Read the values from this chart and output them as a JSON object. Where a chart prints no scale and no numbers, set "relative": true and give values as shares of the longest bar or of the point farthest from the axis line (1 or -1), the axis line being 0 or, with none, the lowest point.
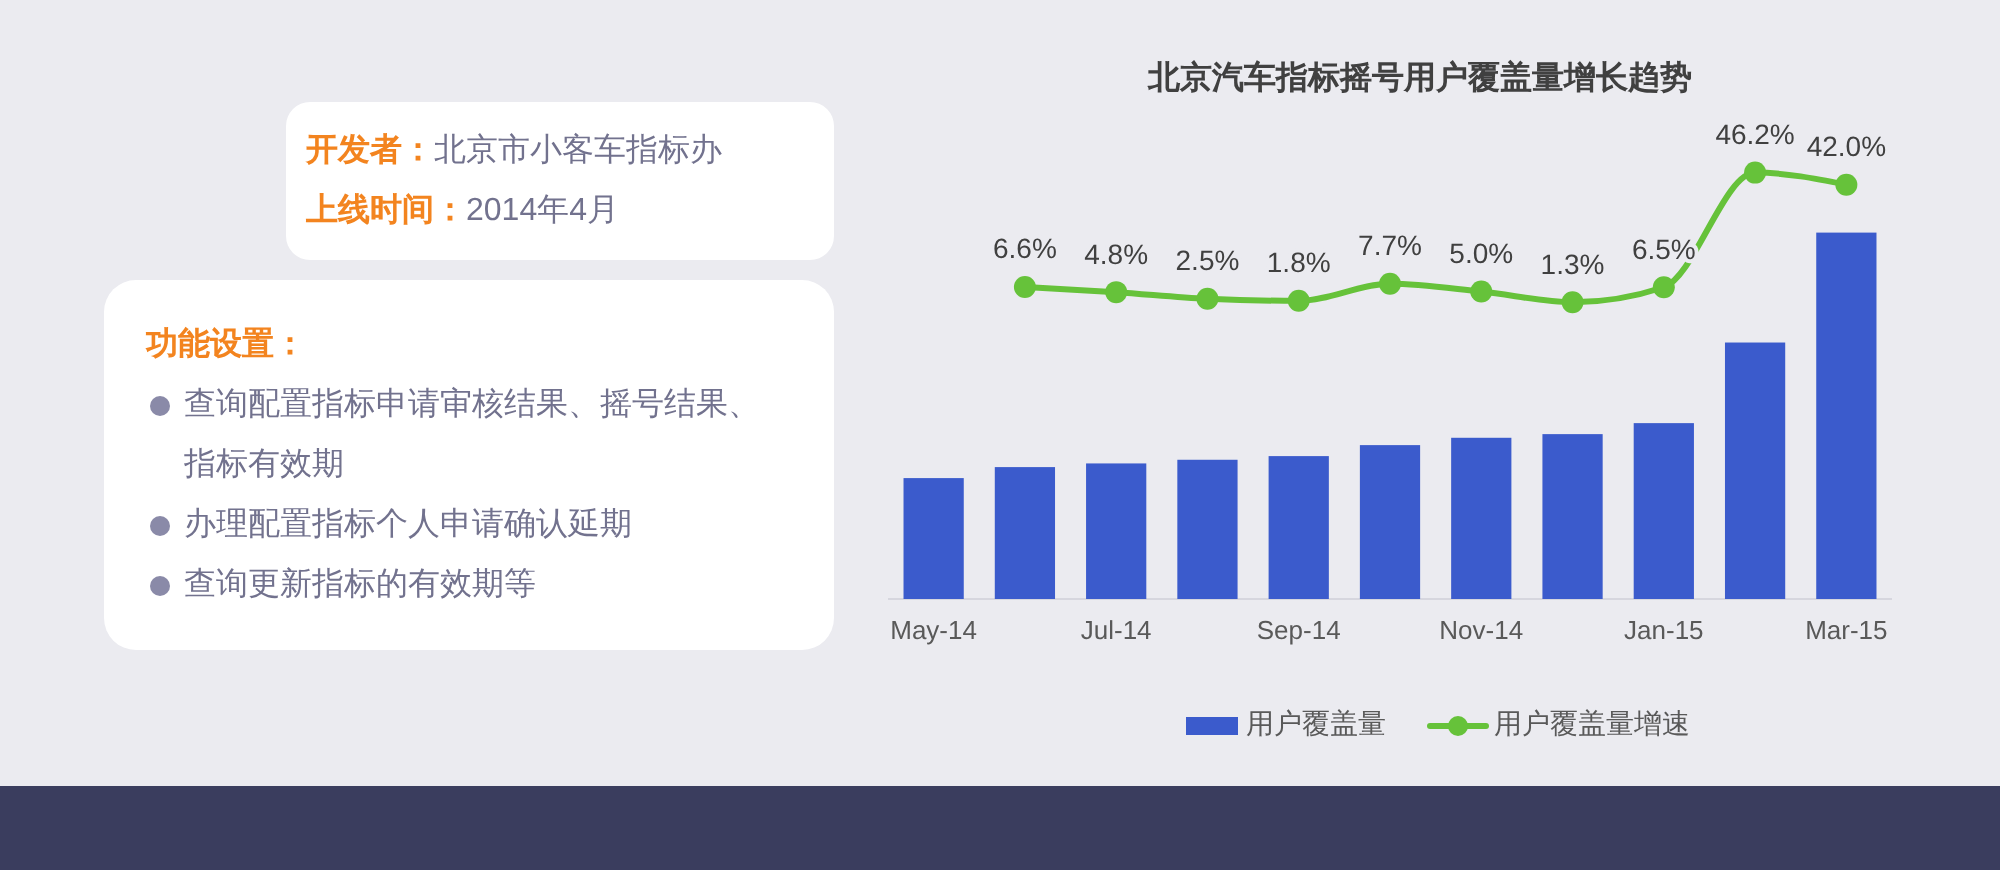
{
  "chart_data": [
    {
      "type": "other",
      "annotations": [
        "**开发者：**北京市小客车指标办",
        "**上线时间：**2014年4月"
      ]
    },
    {
      "type": "other",
      "title": "功能设置：",
      "annotations": [
        "查询配置指标申请审核结果、摇号结果、指标有效期",
        "办理配置指标个人申请确认延期",
        "查询更新指标的有效期等"
      ]
    },
    {
      "type": "bar",
      "title": "北京汽车指标摇号用户覆盖量增长趋势",
      "categories": [
        "May-14",
        null,
        "Jul-14",
        null,
        "Sep-14",
        null,
        "Nov-14",
        null,
        "Jan-15",
        null,
        "Mar-15"
      ],
      "relative": true,
      "legend": "bottom",
      "series": [
        {
          "name": "用户覆盖量",
          "color": "#3b5bcc",
          "values": [
            0.33,
            0.36,
            0.37,
            0.38,
            0.39,
            0.42,
            0.44,
            0.45,
            0.48,
            0.7,
            1
          ]
        }
      ]
    },
    {
      "type": "line",
      "categories": [
        null,
        null,
        null,
        null,
        null,
        null,
        null,
        null,
        null,
        null,
        null
      ],
      "tick_labels": false,
      "legend": "bottom",
      "marker": "circle",
      "series": [
        {
          "name": "用户覆盖量增速",
          "color": "#66c23a",
          "values": [
            null,
            6.6,
            4.8,
            2.5,
            1.8,
            7.7,
            5.0,
            1.3,
            6.5,
            46.2,
            42.0
          ],
          "value_labels": [
            null,
            "6.6%",
            "4.8%",
            "2.5%",
            "1.8%",
            "7.7%",
            "5.0%",
            "1.3%",
            "6.5%",
            "46.2%",
            "42.0%"
          ]
        }
      ]
    }
  ]
}
